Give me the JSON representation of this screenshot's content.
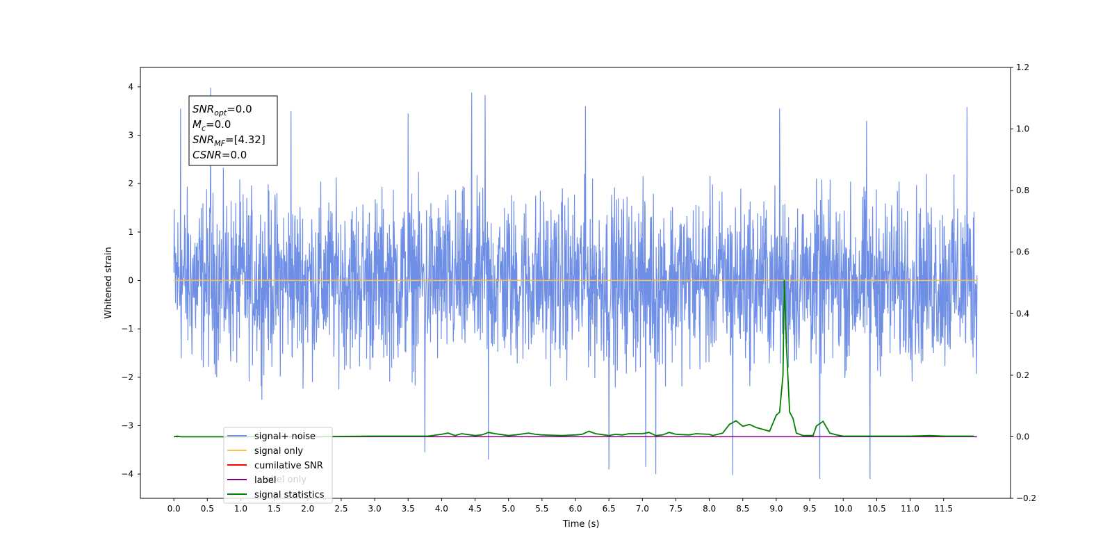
{
  "chart_data": {
    "type": "line",
    "xlabel": "Time (s)",
    "ylabel": "Whitened strain",
    "xlim": [
      -0.5,
      12.5
    ],
    "ylim": [
      -4.5,
      4.4
    ],
    "y2lim": [
      -0.2,
      1.2
    ],
    "x_ticks": [
      "0.0",
      "0.5",
      "1.0",
      "1.5",
      "2.0",
      "2.5",
      "3.0",
      "3.5",
      "4.0",
      "4.5",
      "5.0",
      "5.5",
      "6.0",
      "6.5",
      "7.0",
      "7.5",
      "8.0",
      "8.5",
      "9.0",
      "9.5",
      "10.0",
      "10.5",
      "11.0",
      "11.5"
    ],
    "y_ticks": [
      "4",
      "3",
      "2",
      "1",
      "0",
      "−1",
      "−2",
      "−3",
      "−4"
    ],
    "y2_ticks": [
      "1.2",
      "1.0",
      "0.8",
      "0.6",
      "0.4",
      "0.2",
      "0.0",
      "−0.2"
    ],
    "grid": false,
    "legend_placement": "lower-left",
    "annotation": {
      "lines": [
        {
          "sym": "SNR",
          "sub": "opt",
          "val": "=0.0"
        },
        {
          "sym": "M",
          "sub": "c",
          "val": "=0.0"
        },
        {
          "sym": "SNR",
          "sub": "MF",
          "val": "=[4.32]"
        },
        {
          "sym": "CSNR",
          "sub": "",
          "val": "=0.0"
        }
      ]
    },
    "legend": [
      {
        "label": "signal+ noise",
        "color": "#6f8fe6"
      },
      {
        "label": "signal only",
        "color": "#ffc04d"
      },
      {
        "label": "cumilative SNR",
        "color": "#ff0000"
      },
      {
        "label": "label",
        "color": "#800080"
      },
      {
        "label": "signal statistics",
        "color": "#008000"
      }
    ],
    "hidden_text": "label only",
    "series": [
      {
        "name": "signal+ noise",
        "axis": "left",
        "x_range": [
          0.0,
          12.0
        ],
        "envelope_typical": [
          -2.0,
          2.3
        ],
        "spikes": [
          {
            "x": 0.55,
            "y": 3.98
          },
          {
            "x": 0.1,
            "y": 3.55
          },
          {
            "x": 4.45,
            "y": 3.88
          },
          {
            "x": 4.65,
            "y": 3.83
          },
          {
            "x": 1.75,
            "y": 3.5
          },
          {
            "x": 6.15,
            "y": 3.6
          },
          {
            "x": 9.05,
            "y": 3.55
          },
          {
            "x": 11.85,
            "y": 3.58
          },
          {
            "x": 3.5,
            "y": 3.45
          },
          {
            "x": 10.35,
            "y": 3.3
          },
          {
            "x": 6.5,
            "y": -3.9
          },
          {
            "x": 7.2,
            "y": -4.0
          },
          {
            "x": 8.35,
            "y": -4.02
          },
          {
            "x": 9.65,
            "y": -4.1
          },
          {
            "x": 10.4,
            "y": -4.1
          },
          {
            "x": 4.7,
            "y": -3.7
          },
          {
            "x": 3.75,
            "y": -3.55
          },
          {
            "x": 7.05,
            "y": -3.85
          }
        ]
      },
      {
        "name": "signal only",
        "axis": "left",
        "x": [
          0.0,
          12.0
        ],
        "y": [
          0.0,
          0.0
        ]
      },
      {
        "name": "label",
        "axis": "right",
        "x": [
          0.0,
          12.0
        ],
        "y": [
          0.0,
          0.0
        ]
      },
      {
        "name": "signal statistics",
        "axis": "right",
        "x": [
          0.0,
          0.05,
          0.1,
          1.0,
          2.0,
          3.0,
          3.5,
          3.8,
          4.0,
          4.1,
          4.2,
          4.3,
          4.5,
          4.6,
          4.7,
          4.8,
          5.0,
          5.1,
          5.3,
          5.4,
          5.5,
          5.8,
          6.0,
          6.1,
          6.2,
          6.3,
          6.5,
          6.6,
          6.7,
          6.8,
          7.0,
          7.1,
          7.2,
          7.3,
          7.4,
          7.5,
          7.7,
          7.8,
          8.0,
          8.05,
          8.2,
          8.3,
          8.4,
          8.5,
          8.6,
          8.7,
          8.8,
          8.9,
          9.0,
          9.05,
          9.1,
          9.12,
          9.15,
          9.2,
          9.25,
          9.3,
          9.4,
          9.5,
          9.55,
          9.6,
          9.7,
          9.8,
          9.9,
          10.0,
          11.0,
          11.3,
          11.5,
          11.95
        ],
        "y": [
          0.0,
          0.002,
          0.0,
          0.0,
          0.0,
          0.002,
          0.002,
          0.002,
          0.008,
          0.012,
          0.004,
          0.01,
          0.004,
          0.006,
          0.014,
          0.01,
          0.004,
          0.006,
          0.012,
          0.008,
          0.006,
          0.004,
          0.006,
          0.008,
          0.018,
          0.01,
          0.004,
          0.008,
          0.006,
          0.01,
          0.01,
          0.014,
          0.004,
          0.006,
          0.014,
          0.008,
          0.006,
          0.01,
          0.008,
          0.004,
          0.012,
          0.04,
          0.052,
          0.034,
          0.04,
          0.03,
          0.024,
          0.018,
          0.07,
          0.08,
          0.2,
          0.51,
          0.3,
          0.08,
          0.06,
          0.012,
          0.004,
          0.004,
          0.004,
          0.035,
          0.05,
          0.012,
          0.006,
          0.002,
          0.002,
          0.004,
          0.002,
          0.002
        ]
      }
    ]
  }
}
